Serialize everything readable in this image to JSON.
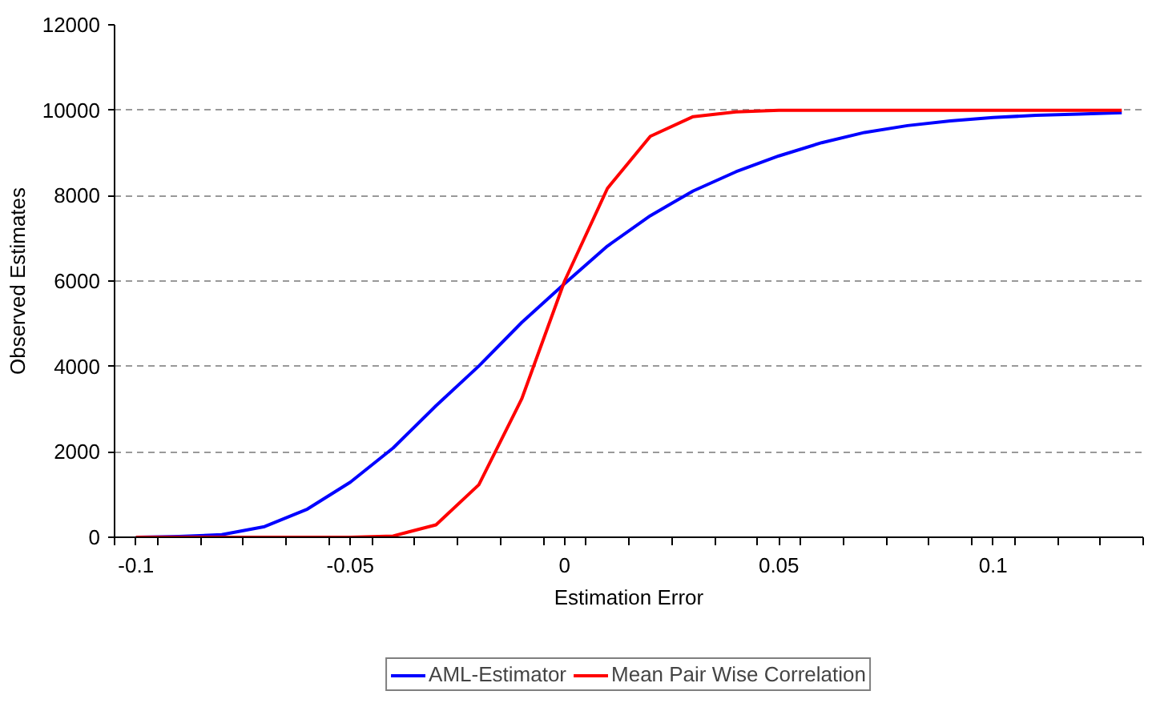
{
  "chart_data": {
    "type": "line",
    "xlabel": "Estimation Error",
    "ylabel": "Observed Estimates",
    "x": [
      -0.1,
      -0.09,
      -0.08,
      -0.07,
      -0.06,
      -0.05,
      -0.04,
      -0.03,
      -0.02,
      -0.01,
      0,
      0.01,
      0.02,
      0.03,
      0.04,
      0.05,
      0.06,
      0.07,
      0.08,
      0.09,
      0.1,
      0.11,
      0.12,
      0.13
    ],
    "series": [
      {
        "name": "AML-Estimator",
        "color": "#0000ff",
        "values": [
          0,
          20,
          60,
          250,
          660,
          1290,
          2090,
          3080,
          4010,
          5030,
          5940,
          6820,
          7530,
          8110,
          8560,
          8930,
          9240,
          9480,
          9640,
          9750,
          9830,
          9880,
          9910,
          9940
        ]
      },
      {
        "name": "Mean Pair Wise Correlation",
        "color": "#ff0000",
        "values": [
          0,
          0,
          0,
          0,
          0,
          0,
          30,
          290,
          1230,
          3240,
          6000,
          8170,
          9390,
          9850,
          9960,
          10000,
          10000,
          10000,
          10000,
          10000,
          10000,
          10000,
          10000,
          10000
        ]
      }
    ],
    "xlim": [
      -0.105,
      0.135
    ],
    "xticks": [
      {
        "value": -0.105,
        "label": null
      },
      -0.1,
      {
        "value": -0.095,
        "label": null
      },
      {
        "value": -0.085,
        "label": null
      },
      {
        "value": -0.075,
        "label": null
      },
      {
        "value": -0.065,
        "label": null
      },
      {
        "value": -0.055,
        "label": null
      },
      -0.05,
      {
        "value": -0.045,
        "label": null
      },
      {
        "value": -0.035,
        "label": null
      },
      {
        "value": -0.025,
        "label": null
      },
      {
        "value": -0.015,
        "label": null
      },
      {
        "value": -0.005,
        "label": null
      },
      0,
      {
        "value": 0.005,
        "label": null
      },
      {
        "value": 0.015,
        "label": null
      },
      {
        "value": 0.025,
        "label": null
      },
      {
        "value": 0.035,
        "label": null
      },
      {
        "value": 0.045,
        "label": null
      },
      0.05,
      {
        "value": 0.055,
        "label": null
      },
      {
        "value": 0.065,
        "label": null
      },
      {
        "value": 0.075,
        "label": null
      },
      {
        "value": 0.085,
        "label": null
      },
      {
        "value": 0.095,
        "label": null
      },
      0.1,
      {
        "value": 0.105,
        "label": null
      },
      {
        "value": 0.115,
        "label": null
      },
      {
        "value": 0.125,
        "label": null
      },
      {
        "value": 0.135,
        "label": null
      }
    ],
    "ylim": [
      0,
      12000
    ],
    "yticks": [
      0,
      2000,
      4000,
      6000,
      8000,
      10000,
      12000
    ],
    "grid": "y",
    "legend": "bottom",
    "marker": "none",
    "line_style": "solid"
  }
}
